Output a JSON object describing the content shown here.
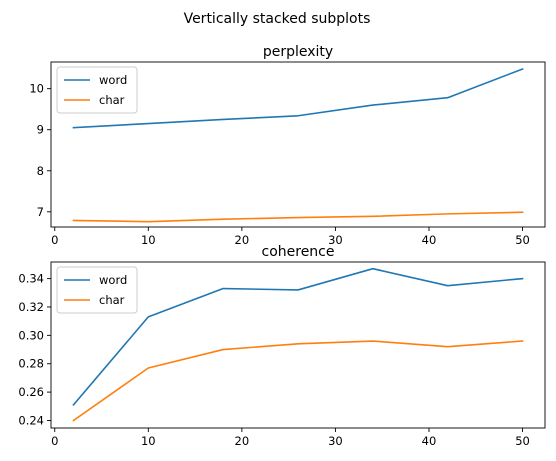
{
  "figure_title": "Vertically stacked subplots",
  "chart_data": [
    {
      "type": "line",
      "title": "perplexity",
      "xlabel": "",
      "ylabel": "",
      "x": [
        2,
        10,
        18,
        26,
        34,
        42,
        50
      ],
      "xlim": [
        -0.4,
        52.4
      ],
      "ylim": [
        6.63,
        10.65
      ],
      "xticks": [
        0,
        10,
        20,
        30,
        40,
        50
      ],
      "yticks": [
        7,
        8,
        9,
        10
      ],
      "grid": false,
      "legend": "upper left",
      "series": [
        {
          "name": "word",
          "color": "#1f77b4",
          "values": [
            9.05,
            9.15,
            9.25,
            9.34,
            9.6,
            9.78,
            10.48
          ]
        },
        {
          "name": "char",
          "color": "#ff7f0e",
          "values": [
            6.79,
            6.76,
            6.82,
            6.86,
            6.89,
            6.95,
            6.99
          ]
        }
      ]
    },
    {
      "type": "line",
      "title": "coherence",
      "xlabel": "",
      "ylabel": "",
      "x": [
        2,
        10,
        18,
        26,
        34,
        42,
        50
      ],
      "xlim": [
        -0.4,
        52.4
      ],
      "ylim": [
        0.2347,
        0.3517
      ],
      "xticks": [
        0,
        10,
        20,
        30,
        40,
        50
      ],
      "yticks": [
        0.24,
        0.26,
        0.28,
        0.3,
        0.32,
        0.34
      ],
      "ytick_labels": [
        "0.24",
        "0.26",
        "0.28",
        "0.30",
        "0.32",
        "0.34"
      ],
      "grid": false,
      "legend": "upper left",
      "series": [
        {
          "name": "word",
          "color": "#1f77b4",
          "values": [
            0.251,
            0.313,
            0.333,
            0.332,
            0.347,
            0.335,
            0.34
          ]
        },
        {
          "name": "char",
          "color": "#ff7f0e",
          "values": [
            0.24,
            0.277,
            0.29,
            0.294,
            0.296,
            0.292,
            0.296
          ]
        }
      ]
    }
  ]
}
